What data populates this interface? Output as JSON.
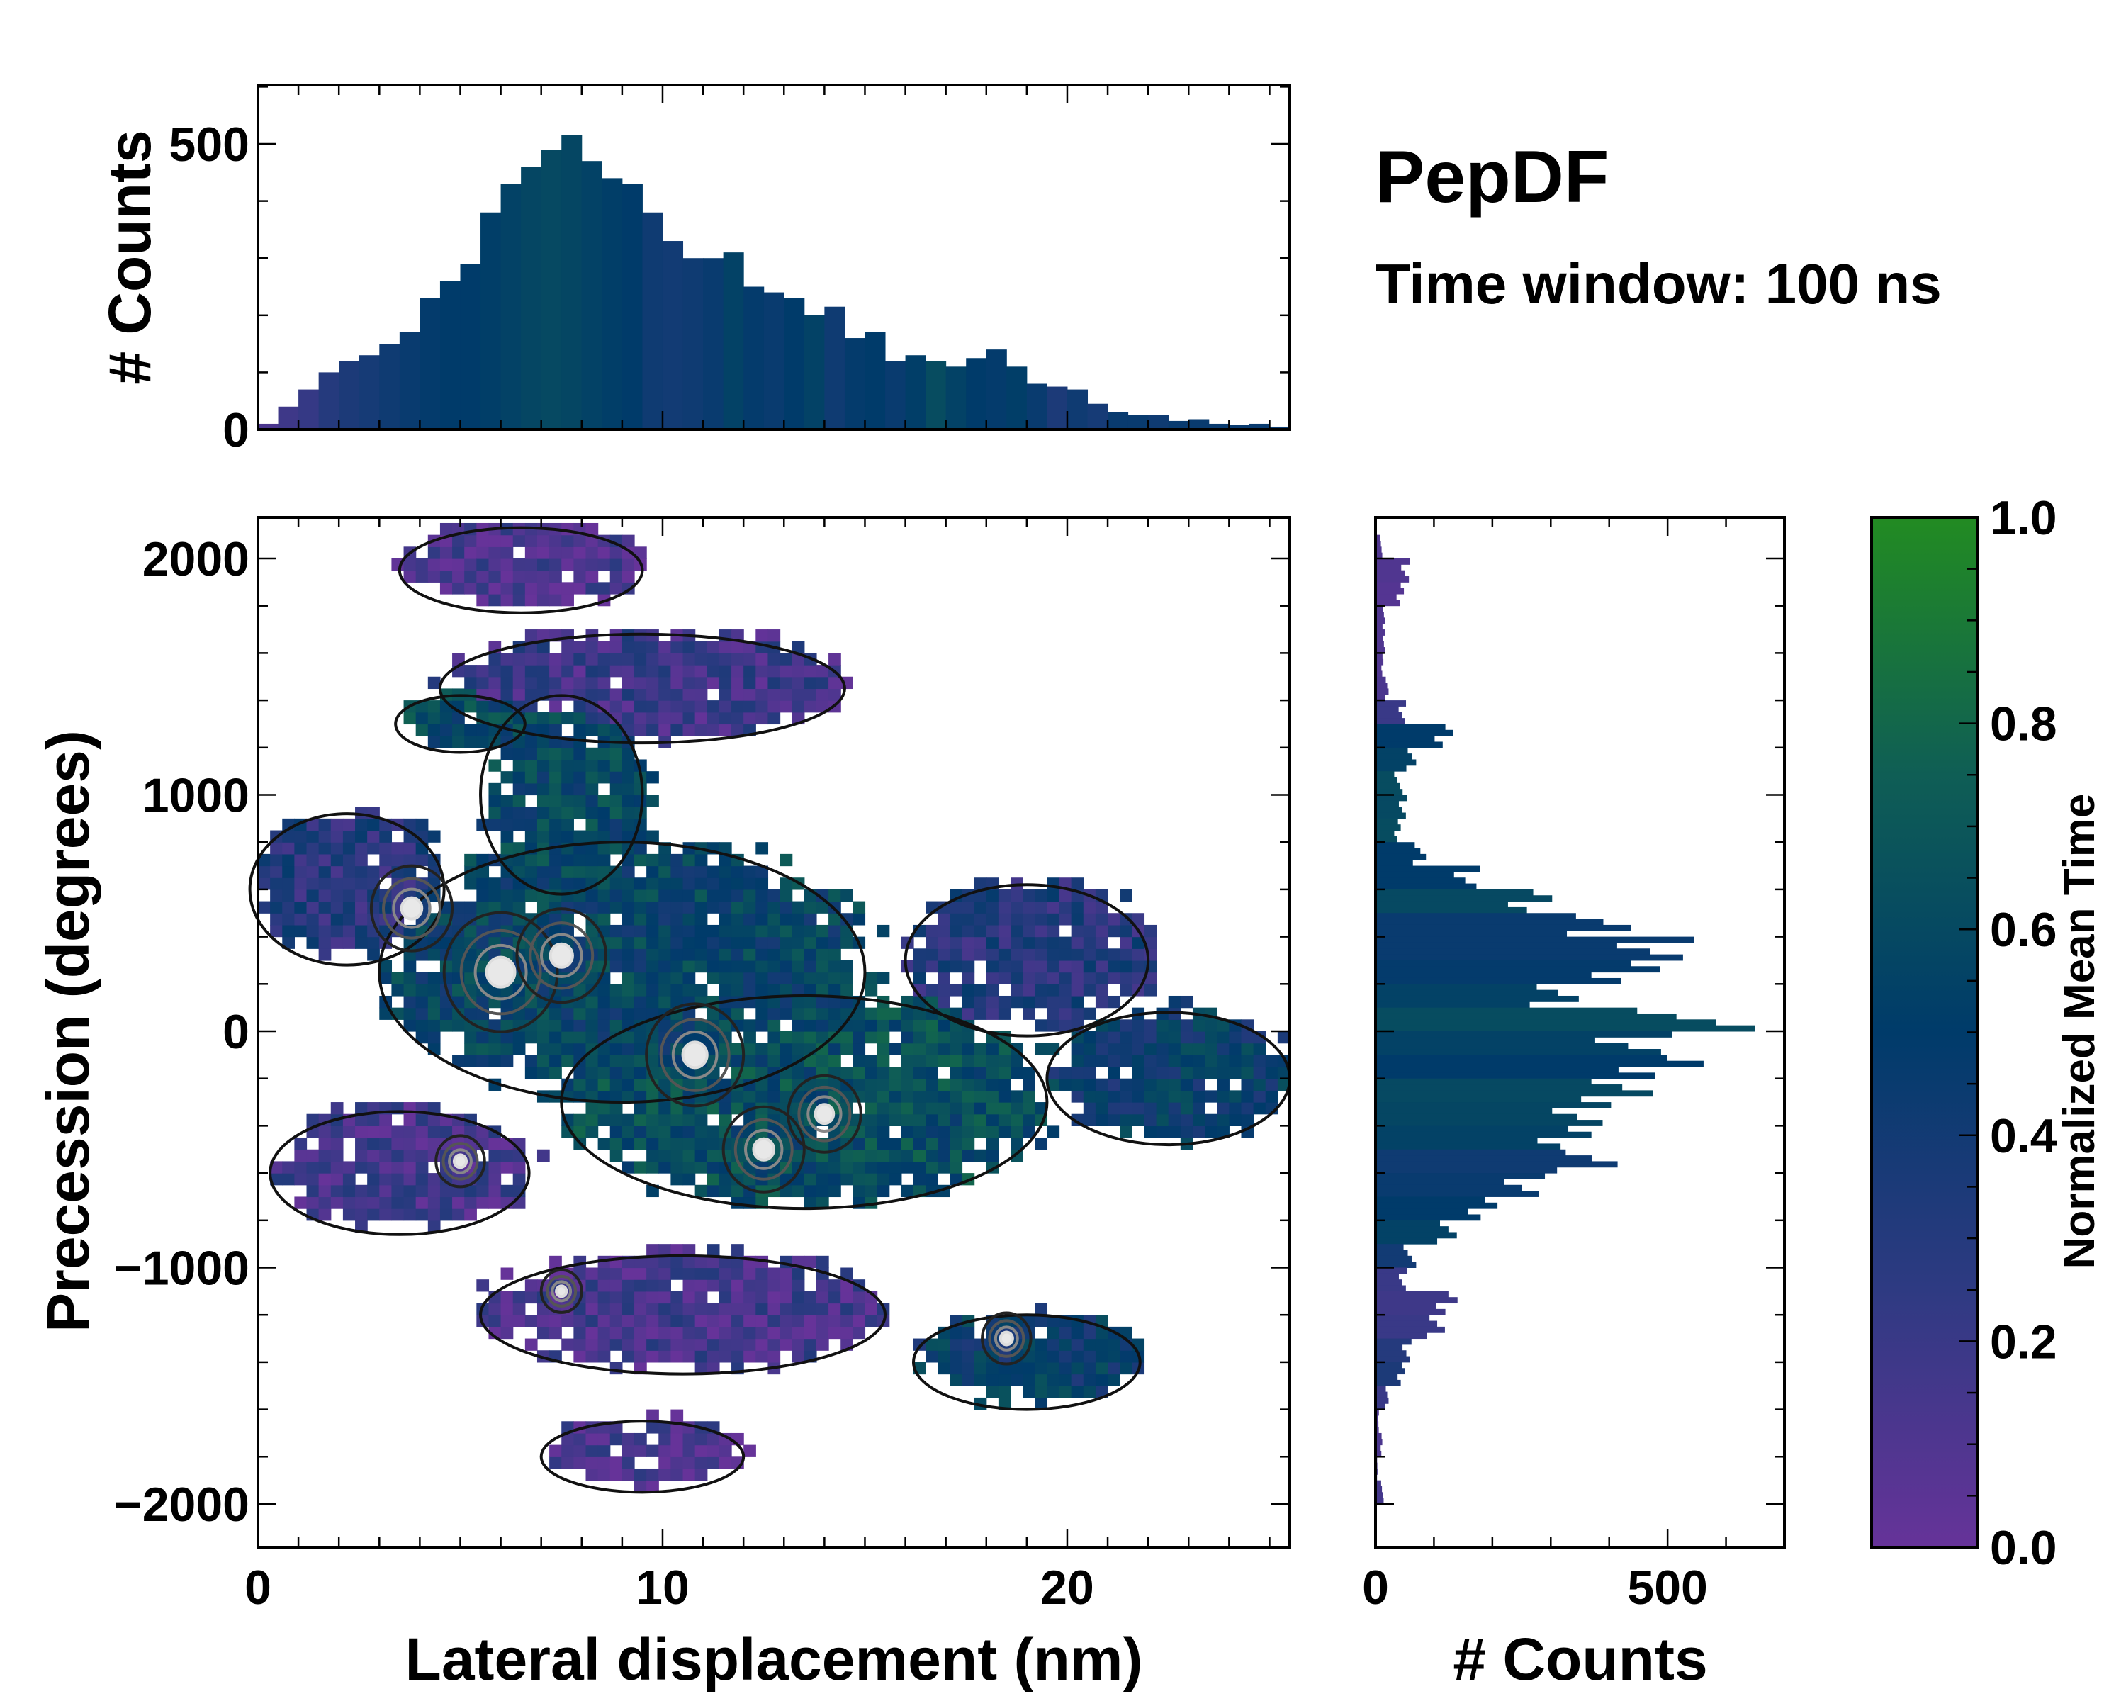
{
  "chart_data": [
    {
      "type": "bar",
      "name": "top-histogram",
      "ylabel": "# Counts",
      "xlim": [
        0,
        25.5
      ],
      "ylim": [
        0,
        603
      ],
      "yticks": [
        "0",
        "500"
      ],
      "ytick_values": [
        0,
        500
      ],
      "bin_width": 0.5,
      "x": [
        0,
        0.5,
        1,
        1.5,
        2,
        2.5,
        3,
        3.5,
        4,
        4.5,
        5,
        5.5,
        6,
        6.5,
        7,
        7.5,
        8,
        8.5,
        9,
        9.5,
        10,
        10.5,
        11,
        11.5,
        12,
        12.5,
        13,
        13.5,
        14,
        14.5,
        15,
        15.5,
        16,
        16.5,
        17,
        17.5,
        18,
        18.5,
        19,
        19.5,
        20,
        20.5,
        21,
        21.5,
        22,
        22.5,
        23,
        23.5,
        24,
        24.5,
        25
      ],
      "values": [
        10,
        40,
        70,
        100,
        120,
        130,
        150,
        170,
        230,
        260,
        290,
        380,
        430,
        460,
        490,
        515,
        470,
        440,
        430,
        380,
        330,
        300,
        300,
        310,
        250,
        240,
        230,
        200,
        215,
        160,
        170,
        120,
        130,
        120,
        110,
        125,
        140,
        110,
        80,
        75,
        70,
        45,
        30,
        25,
        25,
        15,
        18,
        10,
        8,
        10,
        5
      ],
      "mean_time": [
        0.12,
        0.18,
        0.22,
        0.3,
        0.35,
        0.38,
        0.42,
        0.45,
        0.48,
        0.5,
        0.5,
        0.52,
        0.55,
        0.58,
        0.6,
        0.58,
        0.55,
        0.52,
        0.5,
        0.42,
        0.4,
        0.42,
        0.45,
        0.55,
        0.48,
        0.45,
        0.5,
        0.55,
        0.42,
        0.48,
        0.5,
        0.45,
        0.52,
        0.62,
        0.55,
        0.5,
        0.48,
        0.52,
        0.45,
        0.35,
        0.42,
        0.38,
        0.45,
        0.45,
        0.42,
        0.45,
        0.45,
        0.45,
        0.45,
        0.45,
        0.45
      ]
    },
    {
      "type": "heatmap",
      "name": "main-2d-histogram",
      "xlabel": "Lateral displacement (nm)",
      "ylabel": "Precession (degrees)",
      "xlim": [
        0,
        25.5
      ],
      "ylim": [
        -2183,
        2174
      ],
      "xticks": [
        "0",
        "10",
        "20"
      ],
      "xtick_values": [
        0,
        10,
        20
      ],
      "yticks": [
        "2000",
        "1000",
        "0",
        "−1000",
        "−2000"
      ],
      "ytick_values": [
        2000,
        1000,
        0,
        -1000,
        -2000
      ],
      "cell": [
        0.3,
        50
      ],
      "regions": [
        {
          "x": 6.5,
          "y": 1950,
          "rx": 3.0,
          "ry": 180,
          "v": 0.1
        },
        {
          "x": 9.5,
          "y": 1450,
          "rx": 5.0,
          "ry": 230,
          "v": 0.18
        },
        {
          "x": 5.0,
          "y": 1300,
          "rx": 1.6,
          "ry": 120,
          "v": 0.6
        },
        {
          "x": 7.5,
          "y": 1000,
          "rx": 2.0,
          "ry": 420,
          "v": 0.58
        },
        {
          "x": 2.2,
          "y": 600,
          "rx": 2.4,
          "ry": 320,
          "v": 0.3
        },
        {
          "x": 9.0,
          "y": 250,
          "rx": 6.0,
          "ry": 550,
          "v": 0.55
        },
        {
          "x": 13.5,
          "y": -300,
          "rx": 6.0,
          "ry": 450,
          "v": 0.62
        },
        {
          "x": 19.0,
          "y": 300,
          "rx": 3.0,
          "ry": 320,
          "v": 0.3
        },
        {
          "x": 22.5,
          "y": -200,
          "rx": 3.0,
          "ry": 280,
          "v": 0.48
        },
        {
          "x": 3.5,
          "y": -600,
          "rx": 3.2,
          "ry": 260,
          "v": 0.15
        },
        {
          "x": 10.5,
          "y": -1200,
          "rx": 5.0,
          "ry": 250,
          "v": 0.15
        },
        {
          "x": 19.0,
          "y": -1400,
          "rx": 2.8,
          "ry": 200,
          "v": 0.5
        },
        {
          "x": 9.5,
          "y": -1800,
          "rx": 2.5,
          "ry": 150,
          "v": 0.1
        }
      ],
      "hotspots": [
        {
          "x": 3.8,
          "y": 520,
          "r": 1.0
        },
        {
          "x": 6.0,
          "y": 250,
          "r": 1.4
        },
        {
          "x": 7.5,
          "y": 320,
          "r": 1.1
        },
        {
          "x": 10.8,
          "y": -100,
          "r": 1.2
        },
        {
          "x": 14.0,
          "y": -350,
          "r": 0.9
        },
        {
          "x": 12.5,
          "y": -500,
          "r": 1.0
        },
        {
          "x": 5.0,
          "y": -550,
          "r": 0.6
        },
        {
          "x": 7.5,
          "y": -1100,
          "r": 0.5
        },
        {
          "x": 18.5,
          "y": -1300,
          "r": 0.6
        }
      ]
    },
    {
      "type": "bar",
      "orientation": "horizontal",
      "name": "right-histogram",
      "xlabel": "# Counts",
      "xlim": [
        0,
        700
      ],
      "xticks": [
        "0",
        "500"
      ],
      "xtick_values": [
        0,
        500
      ],
      "bin_width": 100,
      "y": [
        2100,
        2000,
        1900,
        1800,
        1700,
        1600,
        1500,
        1400,
        1300,
        1200,
        1100,
        1000,
        900,
        800,
        700,
        600,
        500,
        400,
        300,
        200,
        100,
        0,
        -100,
        -200,
        -300,
        -400,
        -500,
        -600,
        -700,
        -800,
        -900,
        -1000,
        -1100,
        -1200,
        -1300,
        -1400,
        -1500,
        -1600,
        -1700,
        -1800,
        -1900
      ],
      "values": [
        10,
        55,
        45,
        15,
        15,
        12,
        20,
        45,
        115,
        60,
        40,
        50,
        40,
        80,
        160,
        270,
        390,
        470,
        420,
        300,
        560,
        470,
        520,
        440,
        360,
        330,
        370,
        250,
        180,
        120,
        60,
        50,
        130,
        110,
        55,
        45,
        20,
        5,
        10,
        3,
        12
      ],
      "mean_time": [
        0.1,
        0.1,
        0.08,
        0.1,
        0.1,
        0.1,
        0.12,
        0.2,
        0.5,
        0.55,
        0.62,
        0.6,
        0.62,
        0.5,
        0.5,
        0.6,
        0.45,
        0.45,
        0.48,
        0.55,
        0.62,
        0.55,
        0.5,
        0.6,
        0.58,
        0.55,
        0.42,
        0.45,
        0.5,
        0.55,
        0.4,
        0.2,
        0.18,
        0.2,
        0.3,
        0.35,
        0.2,
        0.12,
        0.12,
        0.15,
        0.15
      ]
    },
    {
      "type": "colorbar",
      "name": "colorbar",
      "label": "Normalized Mean Time",
      "range": [
        0,
        1
      ],
      "ticks": [
        "0.0",
        "0.2",
        "0.4",
        "0.6",
        "0.8",
        "1.0"
      ],
      "tick_values": [
        0,
        0.2,
        0.4,
        0.6,
        0.8,
        1.0
      ],
      "colormap": [
        "#663399",
        "#2e3a82",
        "#003b6a",
        "#0f5e55",
        "#228b22"
      ]
    }
  ],
  "title": "PepDF",
  "subtitle": "Time window: 100 ns"
}
